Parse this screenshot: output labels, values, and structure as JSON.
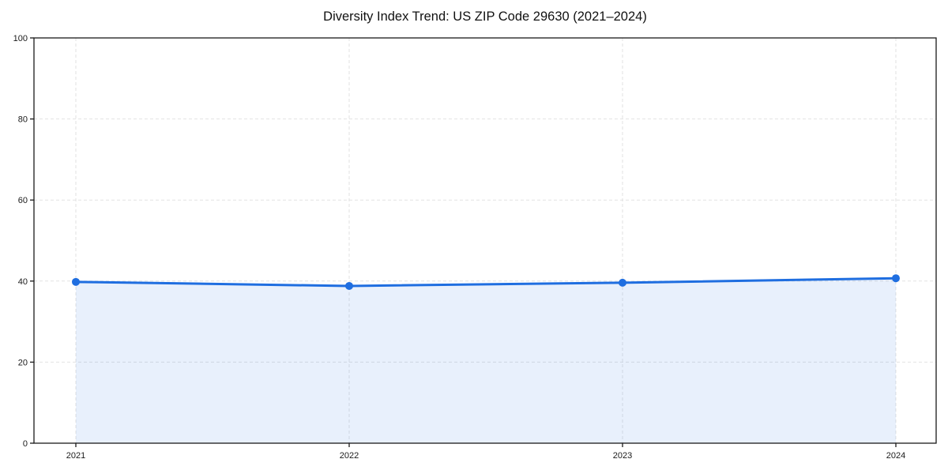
{
  "chart_data": {
    "type": "area",
    "title": "Diversity Index Trend: US ZIP Code 29630 (2021–2024)",
    "categories": [
      "2021",
      "2022",
      "2023",
      "2024"
    ],
    "values": [
      39.8,
      38.8,
      39.6,
      40.7
    ],
    "series_name": "Diversity Index",
    "xlabel": "",
    "ylabel": "",
    "ylim": [
      0,
      100
    ],
    "yticks": [
      0,
      20,
      40,
      60,
      80,
      100
    ],
    "grid": "dashed",
    "legend": "none",
    "colors": {
      "line": "#1f6ee0",
      "marker": "#1f6ee0",
      "fill": "#1f6ee0",
      "fill_opacity": 0.1,
      "grid": "#e2e2e2",
      "spine": "#1a1a1a",
      "text": "#1a1a1a",
      "background": "#ffffff"
    }
  }
}
